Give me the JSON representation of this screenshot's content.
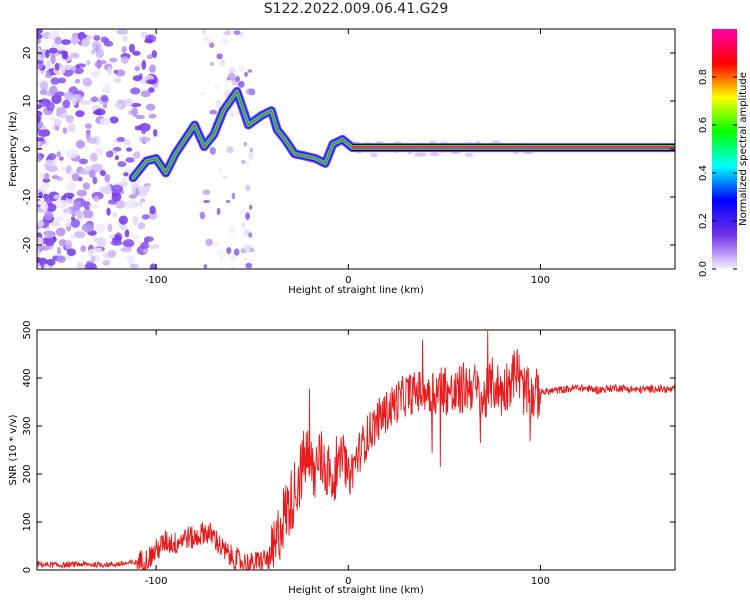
{
  "title": "S122.2022.009.06.41.G29",
  "chart_data": [
    {
      "type": "heatmap",
      "xlabel": "Height of straight line (km)",
      "ylabel": "Frequency (Hz)",
      "xlim": [
        -162,
        170
      ],
      "ylim": [
        -25,
        25
      ],
      "xticks": [
        -100,
        0,
        100
      ],
      "yticks": [
        -20,
        -10,
        0,
        10,
        20
      ],
      "grid": false,
      "ridge": [
        {
          "x": -112,
          "y": -6
        },
        {
          "x": -105,
          "y": -2.5
        },
        {
          "x": -100,
          "y": -2
        },
        {
          "x": -95,
          "y": -5
        },
        {
          "x": -90,
          "y": -1
        },
        {
          "x": -85,
          "y": 2
        },
        {
          "x": -80,
          "y": 5
        },
        {
          "x": -75,
          "y": 0.5
        },
        {
          "x": -70,
          "y": 3
        },
        {
          "x": -65,
          "y": 8
        },
        {
          "x": -58,
          "y": 12
        },
        {
          "x": -52,
          "y": 5
        },
        {
          "x": -45,
          "y": 7
        },
        {
          "x": -40,
          "y": 8
        },
        {
          "x": -37,
          "y": 4
        },
        {
          "x": -33,
          "y": 2
        },
        {
          "x": -28,
          "y": -1
        },
        {
          "x": -22,
          "y": -1.5
        },
        {
          "x": -17,
          "y": -2
        },
        {
          "x": -12,
          "y": -3
        },
        {
          "x": -8,
          "y": 1
        },
        {
          "x": -3,
          "y": 2
        },
        {
          "x": 2,
          "y": 0.3
        },
        {
          "x": 170,
          "y": 0.3
        }
      ]
    },
    {
      "type": "colorbar",
      "label": "Normalized spectral amplitude",
      "range": [
        0.0,
        1.0
      ],
      "ticks": [
        0.0,
        0.2,
        0.4,
        0.6,
        0.8
      ],
      "tick_labels": [
        "0.0",
        "0.2",
        "0.4",
        "0.6",
        "0.8"
      ],
      "colors": [
        "#f6f0ff",
        "#7030e8",
        "#0000ff",
        "#00ffff",
        "#00ff00",
        "#ffff00",
        "#ff0000",
        "#ff00aa"
      ]
    },
    {
      "type": "line",
      "xlabel": "Height of straight line (km)",
      "ylabel": "SNR (10 * v/v)",
      "xlim": [
        -162,
        170
      ],
      "ylim": [
        0,
        500
      ],
      "xticks": [
        -100,
        0,
        100
      ],
      "yticks": [
        0,
        100,
        200,
        300,
        400,
        500
      ],
      "color": "#e8191a",
      "grid": false,
      "series": [
        {
          "x": [
            -162,
            -150,
            -140,
            -130,
            -120,
            -112,
            -105,
            -100,
            -95,
            -90,
            -85,
            -80,
            -75,
            -70,
            -65,
            -60,
            -55,
            -50,
            -45,
            -40,
            -38,
            -35,
            -30,
            -25,
            -22,
            -18,
            -15,
            -12,
            -10,
            -8,
            -5,
            -3,
            0,
            5,
            10,
            15,
            20,
            25,
            30,
            35,
            40,
            45,
            50,
            55,
            60,
            65,
            70,
            75,
            80,
            85,
            88,
            90,
            95,
            100,
            110,
            120,
            130,
            140,
            150,
            160,
            170
          ],
          "y": [
            12,
            10,
            12,
            11,
            12,
            15,
            20,
            40,
            60,
            55,
            70,
            65,
            80,
            70,
            40,
            25,
            15,
            12,
            20,
            25,
            40,
            100,
            140,
            200,
            240,
            200,
            230,
            220,
            200,
            180,
            210,
            250,
            190,
            240,
            280,
            310,
            330,
            350,
            365,
            370,
            375,
            370,
            380,
            360,
            380,
            385,
            350,
            390,
            370,
            400,
            420,
            380,
            360,
            370,
            375,
            380,
            375,
            380,
            375,
            378,
            375
          ]
        }
      ]
    }
  ]
}
